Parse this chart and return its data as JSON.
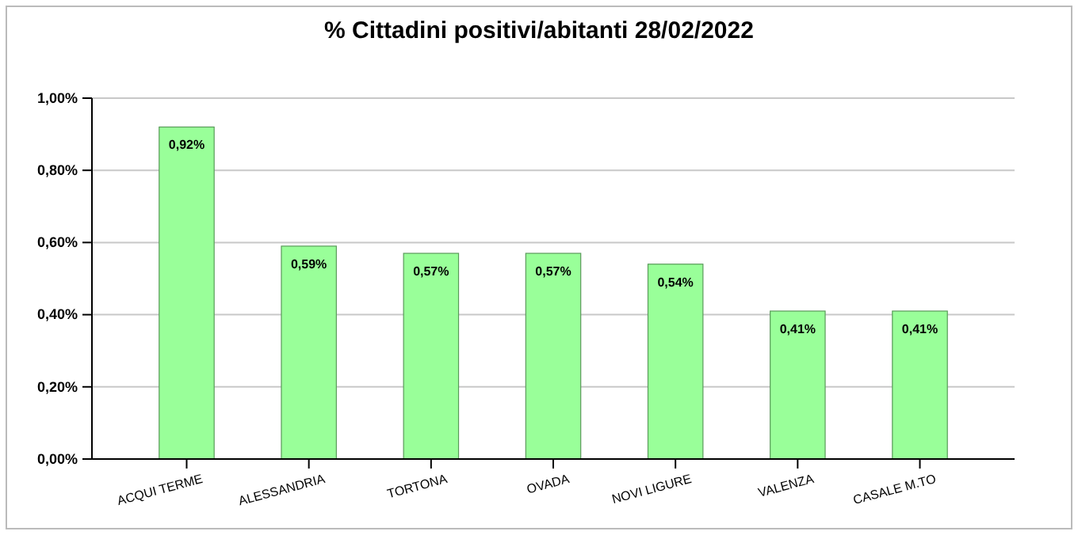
{
  "chart_data": {
    "type": "bar",
    "title": "% Cittadini positivi/abitanti  28/02/2022",
    "categories": [
      "ACQUI TERME",
      "ALESSANDRIA",
      "TORTONA",
      "OVADA",
      "NOVI LIGURE",
      "VALENZA",
      "CASALE M.TO"
    ],
    "values": [
      0.92,
      0.59,
      0.57,
      0.57,
      0.54,
      0.41,
      0.41
    ],
    "value_labels": [
      "0,92%",
      "0,59%",
      "0,57%",
      "0,57%",
      "0,54%",
      "0,41%",
      "0,41%"
    ],
    "color": "#99ff99",
    "ylim": [
      0,
      1
    ],
    "yticks": [
      {
        "value": 0,
        "label": "0,00%"
      },
      {
        "value": 0.2,
        "label": "0,20%"
      },
      {
        "value": 0.4,
        "label": "0,40%"
      },
      {
        "value": 0.6,
        "label": "0,60%"
      },
      {
        "value": 0.8,
        "label": "0,80%"
      },
      {
        "value": 1,
        "label": "1,00%"
      }
    ],
    "grid": "y"
  }
}
